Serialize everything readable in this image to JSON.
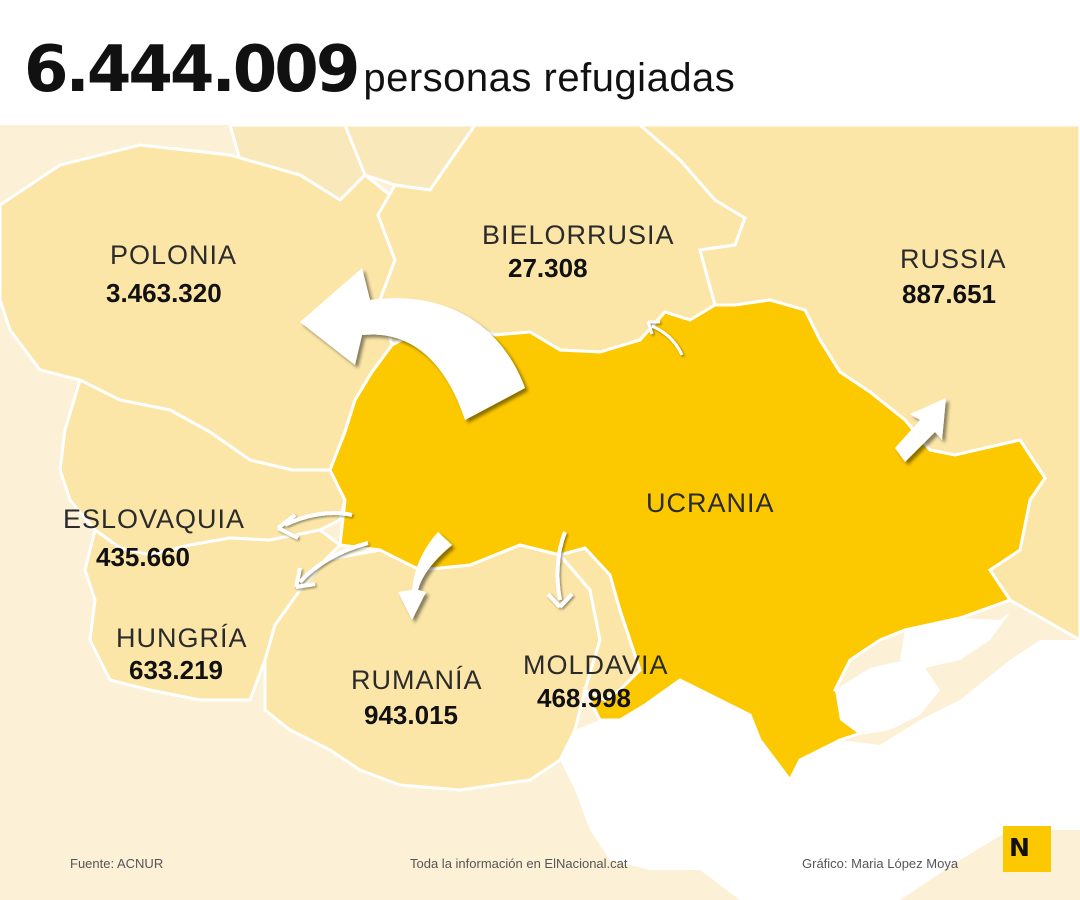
{
  "title": {
    "total": "6.444.009",
    "label": "personas refugiadas"
  },
  "countries": {
    "polonia": {
      "name": "POLONIA",
      "value": "3.463.320"
    },
    "bielorrusia": {
      "name": "BIELORRUSIA",
      "value": "27.308"
    },
    "russia": {
      "name": "RUSSIA",
      "value": "887.651"
    },
    "eslovaquia": {
      "name": "ESLOVAQUIA",
      "value": "435.660"
    },
    "hungria": {
      "name": "HUNGRÍA",
      "value": "633.219"
    },
    "rumania": {
      "name": "RUMANÍA",
      "value": "943.015"
    },
    "moldavia": {
      "name": "MOLDAVIA",
      "value": "468.998"
    },
    "ucrania": {
      "name": "UCRANIA"
    }
  },
  "footer": {
    "source": "Fuente: ACNUR",
    "info": "Toda la información en ElNacional.cat",
    "credit": "Gráfico: Maria López Moya"
  },
  "logo": {
    "text": "N"
  },
  "colors": {
    "ukraine": "#fcc800",
    "neighbors": "#fbe6a8",
    "background_land": "#fcf1d6",
    "sea": "#ffffff",
    "arrows": "#ffffff"
  }
}
